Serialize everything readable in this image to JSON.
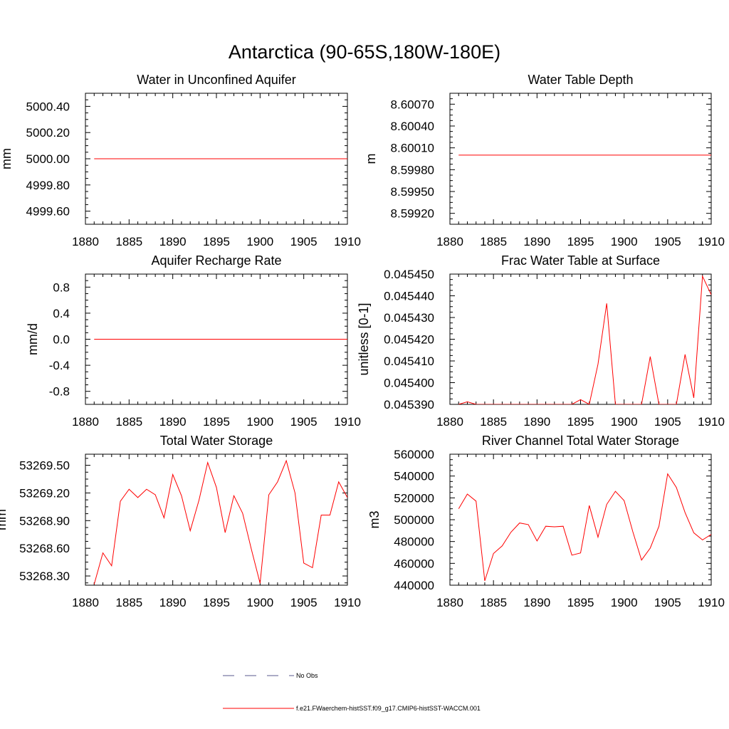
{
  "figure": {
    "title": "Antarctica (90-65S,180W-180E)"
  },
  "legend": [
    {
      "label": "No Obs",
      "color": "#5a5a8c",
      "style": "dashed"
    },
    {
      "label": "f.e21.FWaerchem-histSST.f09_g17.CMIP6-histSST-WACCM.001",
      "color": "#ff0000",
      "style": "solid"
    }
  ],
  "chart_data": [
    {
      "type": "line",
      "title": "Water in Unconfined Aquifer",
      "ylabel": "mm",
      "xlim": [
        1880,
        1910
      ],
      "ylim": [
        4999.5,
        5000.5
      ],
      "xticks": [
        1880,
        1885,
        1890,
        1895,
        1900,
        1905,
        1910
      ],
      "yticks": [
        4999.6,
        4999.8,
        5000.0,
        5000.2,
        5000.4
      ],
      "yticklabels": [
        "4999.60",
        "4999.80",
        "5000.00",
        "5000.20",
        "5000.40"
      ],
      "series": [
        {
          "color": "#ff0000",
          "x": [
            1881,
            1910
          ],
          "y": [
            5000.0,
            5000.0
          ]
        }
      ]
    },
    {
      "type": "line",
      "title": "Water Table Depth",
      "ylabel": "m",
      "xlim": [
        1880,
        1910
      ],
      "ylim": [
        8.59905,
        8.60085
      ],
      "xticks": [
        1880,
        1885,
        1890,
        1895,
        1900,
        1905,
        1910
      ],
      "yticks": [
        8.5992,
        8.5995,
        8.5998,
        8.6001,
        8.6004,
        8.6007
      ],
      "yticklabels": [
        "8.59920",
        "8.59950",
        "8.59980",
        "8.60010",
        "8.60040",
        "8.60070"
      ],
      "series": [
        {
          "color": "#ff0000",
          "x": [
            1881,
            1910
          ],
          "y": [
            8.6,
            8.6
          ]
        }
      ]
    },
    {
      "type": "line",
      "title": "Aquifer Recharge Rate",
      "ylabel": "mm/d",
      "xlim": [
        1880,
        1910
      ],
      "ylim": [
        -1.0,
        1.0
      ],
      "xticks": [
        1880,
        1885,
        1890,
        1895,
        1900,
        1905,
        1910
      ],
      "yticks": [
        -0.8,
        -0.4,
        0.0,
        0.4,
        0.8
      ],
      "yticklabels": [
        "-0.8",
        "-0.4",
        "0.0",
        "0.4",
        "0.8"
      ],
      "series": [
        {
          "color": "#ff0000",
          "x": [
            1881,
            1910
          ],
          "y": [
            0.0,
            0.0
          ]
        }
      ]
    },
    {
      "type": "line",
      "title": "Frac Water Table at Surface",
      "ylabel": "unitless [0-1]",
      "xlim": [
        1880,
        1910
      ],
      "ylim": [
        0.04539,
        0.04545
      ],
      "xticks": [
        1880,
        1885,
        1890,
        1895,
        1900,
        1905,
        1910
      ],
      "yticks": [
        0.04539,
        0.0454,
        0.04541,
        0.04542,
        0.04543,
        0.04544,
        0.04545
      ],
      "yticklabels": [
        "0.045390",
        "0.045400",
        "0.045410",
        "0.045420",
        "0.045430",
        "0.045440",
        "0.045450"
      ],
      "series": [
        {
          "color": "#ff0000",
          "x": [
            1881,
            1882,
            1883,
            1884,
            1885,
            1886,
            1887,
            1888,
            1889,
            1890,
            1891,
            1892,
            1893,
            1894,
            1895,
            1896,
            1897,
            1898,
            1899,
            1900,
            1901,
            1902,
            1903,
            1904,
            1905,
            1906,
            1907,
            1908,
            1909,
            1910
          ],
          "y": [
            0.04539,
            0.0453912,
            0.04539,
            0.04539,
            0.04539,
            0.04539,
            0.04539,
            0.04539,
            0.04539,
            0.04539,
            0.04539,
            0.04539,
            0.04539,
            0.04539,
            0.0453922,
            0.04539,
            0.0454085,
            0.0454365,
            0.04539,
            0.04539,
            0.04539,
            0.04539,
            0.045412,
            0.04539,
            0.04539,
            0.04539,
            0.045413,
            0.045393,
            0.045449,
            0.0454405
          ]
        }
      ]
    },
    {
      "type": "line",
      "title": "Total Water Storage",
      "ylabel": "mm",
      "xlim": [
        1880,
        1910
      ],
      "ylim": [
        53268.2,
        53269.62
      ],
      "xticks": [
        1880,
        1885,
        1890,
        1895,
        1900,
        1905,
        1910
      ],
      "yticks": [
        53268.3,
        53268.6,
        53268.9,
        53269.2,
        53269.5
      ],
      "yticklabels": [
        "53268.30",
        "53268.60",
        "53268.90",
        "53269.20",
        "53269.50"
      ],
      "series": [
        {
          "color": "#ff0000",
          "x": [
            1881,
            1882,
            1883,
            1884,
            1885,
            1886,
            1887,
            1888,
            1889,
            1890,
            1891,
            1892,
            1893,
            1894,
            1895,
            1896,
            1897,
            1898,
            1899,
            1900,
            1901,
            1902,
            1903,
            1904,
            1905,
            1906,
            1907,
            1908,
            1909,
            1910
          ],
          "y": [
            53268.21,
            53268.55,
            53268.41,
            53269.11,
            53269.24,
            53269.15,
            53269.24,
            53269.18,
            53268.93,
            53269.4,
            53269.17,
            53268.79,
            53269.12,
            53269.53,
            53269.26,
            53268.77,
            53269.17,
            53268.98,
            53268.59,
            53268.22,
            53269.18,
            53269.32,
            53269.55,
            53269.2,
            53268.44,
            53268.39,
            53268.96,
            53268.96,
            53269.32,
            53269.15
          ]
        }
      ]
    },
    {
      "type": "line",
      "title": "River Channel Total Water Storage",
      "ylabel": "m3",
      "xlim": [
        1880,
        1910
      ],
      "ylim": [
        440000,
        560000
      ],
      "xticks": [
        1880,
        1885,
        1890,
        1895,
        1900,
        1905,
        1910
      ],
      "yticks": [
        440000,
        460000,
        480000,
        500000,
        520000,
        540000,
        560000
      ],
      "yticklabels": [
        "440000",
        "460000",
        "480000",
        "500000",
        "520000",
        "540000",
        "560000"
      ],
      "series": [
        {
          "color": "#ff0000",
          "x": [
            1881,
            1882,
            1883,
            1884,
            1885,
            1886,
            1887,
            1888,
            1889,
            1890,
            1891,
            1892,
            1893,
            1894,
            1895,
            1896,
            1897,
            1898,
            1899,
            1900,
            1901,
            1902,
            1903,
            1904,
            1905,
            1906,
            1907,
            1908,
            1909,
            1910
          ],
          "y": [
            510000,
            523500,
            517000,
            444000,
            469000,
            476000,
            488500,
            497000,
            495500,
            480500,
            494000,
            493500,
            494000,
            467500,
            469500,
            513000,
            484000,
            514000,
            526000,
            517500,
            489000,
            463000,
            474000,
            494000,
            542000,
            529500,
            506500,
            488000,
            481500,
            486500
          ]
        }
      ]
    }
  ]
}
